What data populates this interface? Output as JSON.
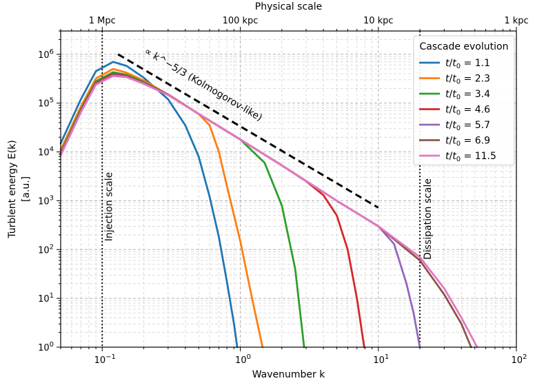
{
  "chart_data": {
    "type": "line",
    "xscale": "log",
    "yscale": "log",
    "xlim": [
      0.05,
      100
    ],
    "ylim": [
      1,
      3000000
    ],
    "xlabel": "Wavenumber k",
    "ylabel_line1": "Turblent energy E(k)",
    "ylabel_line2": "[a.u.]",
    "top_axis_label": "Physical scale",
    "top_ticks": [
      {
        "label": "1 Mpc",
        "k": 0.1
      },
      {
        "label": "100 kpc",
        "k": 1
      },
      {
        "label": "10 kpc",
        "k": 10
      },
      {
        "label": "1 kpc",
        "k": 100
      }
    ],
    "x_ticks": [
      {
        "base": "10",
        "exp": "−1",
        "value": 0.1
      },
      {
        "base": "10",
        "exp": "0",
        "value": 1
      },
      {
        "base": "10",
        "exp": "1",
        "value": 10
      },
      {
        "base": "10",
        "exp": "2",
        "value": 100
      }
    ],
    "y_ticks": [
      {
        "base": "10",
        "exp": "0",
        "value": 1
      },
      {
        "base": "10",
        "exp": "1",
        "value": 10
      },
      {
        "base": "10",
        "exp": "2",
        "value": 100
      },
      {
        "base": "10",
        "exp": "3",
        "value": 1000
      },
      {
        "base": "10",
        "exp": "4",
        "value": 10000
      },
      {
        "base": "10",
        "exp": "5",
        "value": 100000
      },
      {
        "base": "10",
        "exp": "6",
        "value": 1000000
      }
    ],
    "grid": true,
    "legend_title": "Cascade evolution",
    "legend_position": "top-right",
    "injection_scale": {
      "k": 0.1,
      "label": "Injection scale"
    },
    "dissipation_scale": {
      "k": 20,
      "label": "Dissipation scale"
    },
    "kolmogorov": {
      "label": "∝ k^−5/3 (Kolmogorov-like)",
      "k_start": 0.13,
      "k_end": 10,
      "e_start": 1000000,
      "e_end": 720,
      "color": "#000000"
    },
    "series": [
      {
        "name": "t/t0 = 1.1",
        "legend_value": "1.1",
        "color": "#1f77b4",
        "peak": 700000,
        "kc": 0.32,
        "points": [
          [
            0.05,
            15000
          ],
          [
            0.07,
            120000
          ],
          [
            0.09,
            450000
          ],
          [
            0.12,
            700000
          ],
          [
            0.15,
            580000
          ],
          [
            0.2,
            330000
          ],
          [
            0.3,
            120000
          ],
          [
            0.4,
            35000
          ],
          [
            0.5,
            8000
          ],
          [
            0.6,
            1200
          ],
          [
            0.7,
            180
          ],
          [
            0.8,
            22
          ],
          [
            0.9,
            3
          ],
          [
            0.95,
            1
          ]
        ]
      },
      {
        "name": "t/t0 = 2.3",
        "legend_value": "2.3",
        "color": "#ff7f0e",
        "peak": 500000,
        "kc": 0.6,
        "points": [
          [
            0.05,
            11000
          ],
          [
            0.07,
            85000
          ],
          [
            0.09,
            320000
          ],
          [
            0.12,
            500000
          ],
          [
            0.15,
            420000
          ],
          [
            0.2,
            290000
          ],
          [
            0.3,
            150000
          ],
          [
            0.5,
            60000
          ],
          [
            0.6,
            35000
          ],
          [
            0.7,
            10000
          ],
          [
            0.8,
            2000
          ],
          [
            1.0,
            150
          ],
          [
            1.2,
            12
          ],
          [
            1.45,
            1
          ]
        ]
      },
      {
        "name": "t/t0 = 3.4",
        "legend_value": "3.4",
        "color": "#2ca02c",
        "peak": 430000,
        "kc": 1.2,
        "points": [
          [
            0.05,
            9500
          ],
          [
            0.07,
            75000
          ],
          [
            0.09,
            280000
          ],
          [
            0.12,
            430000
          ],
          [
            0.15,
            380000
          ],
          [
            0.2,
            270000
          ],
          [
            0.3,
            150000
          ],
          [
            0.5,
            60000
          ],
          [
            1.0,
            18000
          ],
          [
            1.5,
            6000
          ],
          [
            2.0,
            800
          ],
          [
            2.5,
            40
          ],
          [
            2.9,
            1
          ]
        ]
      },
      {
        "name": "t/t0 = 4.6",
        "legend_value": "4.6",
        "color": "#d62728",
        "peak": 400000,
        "kc": 3.5,
        "points": [
          [
            0.05,
            9000
          ],
          [
            0.07,
            70000
          ],
          [
            0.09,
            260000
          ],
          [
            0.12,
            400000
          ],
          [
            0.15,
            360000
          ],
          [
            0.2,
            260000
          ],
          [
            0.3,
            150000
          ],
          [
            0.5,
            60000
          ],
          [
            1.0,
            18000
          ],
          [
            2.0,
            5300
          ],
          [
            3.0,
            2500
          ],
          [
            4.0,
            1300
          ],
          [
            5.0,
            500
          ],
          [
            6.0,
            100
          ],
          [
            7.0,
            10
          ],
          [
            7.9,
            1
          ]
        ]
      },
      {
        "name": "t/t0 = 5.7",
        "legend_value": "5.7",
        "color": "#9467bd",
        "peak": 380000,
        "kc": 9,
        "points": [
          [
            0.05,
            8800
          ],
          [
            0.07,
            67000
          ],
          [
            0.09,
            250000
          ],
          [
            0.12,
            380000
          ],
          [
            0.15,
            350000
          ],
          [
            0.2,
            255000
          ],
          [
            0.3,
            148000
          ],
          [
            0.5,
            60000
          ],
          [
            1.0,
            18000
          ],
          [
            2.0,
            5300
          ],
          [
            5.0,
            1000
          ],
          [
            10.0,
            300
          ],
          [
            13.0,
            130
          ],
          [
            16.0,
            20
          ],
          [
            18.0,
            5
          ],
          [
            20.0,
            1
          ]
        ]
      },
      {
        "name": "t/t0 = 6.9",
        "legend_value": "6.9",
        "color": "#8c564b",
        "peak": 370000,
        "kc": 18,
        "points": [
          [
            0.05,
            8600
          ],
          [
            0.07,
            66000
          ],
          [
            0.09,
            245000
          ],
          [
            0.12,
            370000
          ],
          [
            0.15,
            345000
          ],
          [
            0.2,
            250000
          ],
          [
            0.3,
            148000
          ],
          [
            0.5,
            60000
          ],
          [
            1.0,
            18000
          ],
          [
            2.0,
            5300
          ],
          [
            5.0,
            1000
          ],
          [
            10.0,
            300
          ],
          [
            20.0,
            60
          ],
          [
            30.0,
            12
          ],
          [
            40.0,
            3
          ],
          [
            47.0,
            1
          ]
        ]
      },
      {
        "name": "t/t0 = 11.5",
        "legend_value": "11.5",
        "color": "#e377c2",
        "peak": 360000,
        "kc": 20,
        "points": [
          [
            0.05,
            8500
          ],
          [
            0.07,
            65000
          ],
          [
            0.09,
            240000
          ],
          [
            0.12,
            360000
          ],
          [
            0.15,
            340000
          ],
          [
            0.2,
            248000
          ],
          [
            0.3,
            146000
          ],
          [
            0.5,
            60000
          ],
          [
            1.0,
            18000
          ],
          [
            2.0,
            5300
          ],
          [
            5.0,
            1000
          ],
          [
            10.0,
            300
          ],
          [
            20.0,
            70
          ],
          [
            30.0,
            16
          ],
          [
            40.0,
            4
          ],
          [
            52.0,
            1
          ]
        ]
      }
    ]
  }
}
